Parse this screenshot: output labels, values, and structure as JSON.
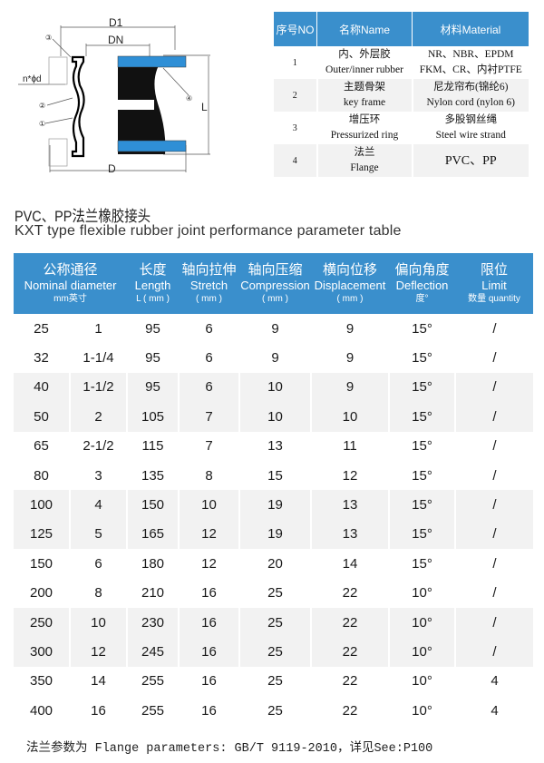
{
  "diagram": {
    "labels": {
      "d1": "D1",
      "dn": "DN",
      "d": "D",
      "l": "L",
      "holes": "n*ϕd",
      "c1": "①",
      "c2": "②",
      "c3": "③",
      "c4": "④"
    },
    "colors": {
      "flange": "#2f8fd6",
      "rubber": "#111111"
    }
  },
  "materials": {
    "headers": [
      "序号NO",
      "名称Name",
      "材料Material"
    ],
    "rows": [
      {
        "no": "1",
        "name_zh": "内、外层胶",
        "name_en": "Outer/inner rubber",
        "mat_1": "NR、NBR、EPDM",
        "mat_2": "FKM、CR、内衬PTFE"
      },
      {
        "no": "2",
        "name_zh": "主题骨架",
        "name_en": "key frame",
        "mat_1": "尼龙帘布(锦纶6)",
        "mat_2": "Nylon cord (nylon 6)"
      },
      {
        "no": "3",
        "name_zh": "增压环",
        "name_en": "Pressurized ring",
        "mat_1": "多股钢丝绳",
        "mat_2": "Steel wire strand"
      },
      {
        "no": "4",
        "name_zh": "法兰",
        "name_en": "Flange",
        "mat_1": "PVC、PP",
        "mat_2": ""
      }
    ]
  },
  "title_zh": "PVC、PP法兰橡胶接头",
  "title_en": "KXT type flexible rubber joint performance parameter table",
  "perf": {
    "headers": [
      {
        "zh": "公称通径",
        "en": "Nominal diameter",
        "unit_a": "mm",
        "unit_b": "英寸"
      },
      {
        "zh": "长度",
        "en": "Length",
        "unit": "L ( mm )"
      },
      {
        "zh": "轴向拉伸",
        "en": "Stretch",
        "unit": "( mm )"
      },
      {
        "zh": "轴向压缩",
        "en": "Compression",
        "unit": "( mm )"
      },
      {
        "zh": "横向位移",
        "en": "Displacement",
        "unit": "( mm )"
      },
      {
        "zh": "偏向角度",
        "en": "Deflection",
        "unit": "度°"
      },
      {
        "zh": "限位",
        "en": "Limit",
        "unit": "数量 quantity"
      }
    ],
    "rows": [
      [
        "25",
        "1",
        "95",
        "6",
        "9",
        "9",
        "15°",
        "/"
      ],
      [
        "32",
        "1-1/4",
        "95",
        "6",
        "9",
        "9",
        "15°",
        "/"
      ],
      [
        "40",
        "1-1/2",
        "95",
        "6",
        "10",
        "9",
        "15°",
        "/"
      ],
      [
        "50",
        "2",
        "105",
        "7",
        "10",
        "10",
        "15°",
        "/"
      ],
      [
        "65",
        "2-1/2",
        "115",
        "7",
        "13",
        "11",
        "15°",
        "/"
      ],
      [
        "80",
        "3",
        "135",
        "8",
        "15",
        "12",
        "15°",
        "/"
      ],
      [
        "100",
        "4",
        "150",
        "10",
        "19",
        "13",
        "15°",
        "/"
      ],
      [
        "125",
        "5",
        "165",
        "12",
        "19",
        "13",
        "15°",
        "/"
      ],
      [
        "150",
        "6",
        "180",
        "12",
        "20",
        "14",
        "15°",
        "/"
      ],
      [
        "200",
        "8",
        "210",
        "16",
        "25",
        "22",
        "10°",
        "/"
      ],
      [
        "250",
        "10",
        "230",
        "16",
        "25",
        "22",
        "10°",
        "/"
      ],
      [
        "300",
        "12",
        "245",
        "16",
        "25",
        "22",
        "10°",
        "/"
      ],
      [
        "350",
        "14",
        "255",
        "16",
        "25",
        "22",
        "10°",
        "4"
      ],
      [
        "400",
        "16",
        "255",
        "16",
        "25",
        "22",
        "10°",
        "4"
      ]
    ]
  },
  "footer": "法兰参数为 Flange parameters: GB/T 9119-2010，详见See:P100",
  "colors": {
    "header_blue": "#3a8fcc",
    "row_gray": "#f2f2f2"
  }
}
